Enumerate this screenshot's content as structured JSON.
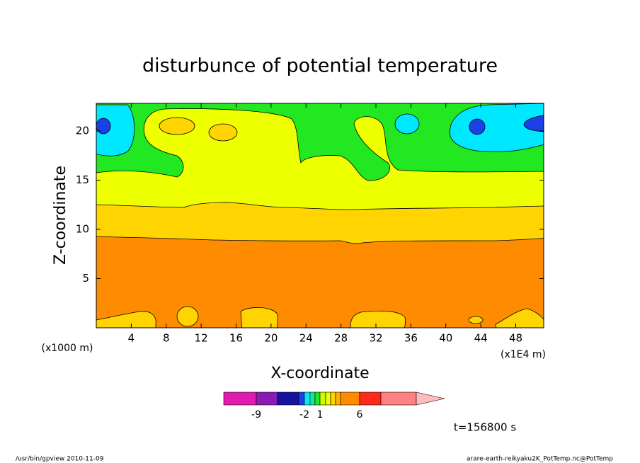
{
  "chart_data": {
    "type": "contour",
    "title": "disturbunce of potential temperature",
    "x_label": "X-coordinate",
    "y_label": "Z-coordinate",
    "x_unit_label": "(x1E4 m)",
    "y_unit_label": "(x1000 m)",
    "annotation": "t=156800 s",
    "xlim": [
      0,
      51.2
    ],
    "xticks": [
      4,
      8,
      12,
      16,
      20,
      24,
      28,
      32,
      36,
      40,
      44,
      48
    ],
    "ylim": [
      0,
      22.8
    ],
    "yticks": [
      5,
      10,
      15,
      20
    ],
    "levels": [
      -12,
      -9,
      -6,
      -3,
      -2,
      -1,
      0,
      1,
      2,
      3,
      4,
      5,
      6,
      9,
      12
    ],
    "colors": [
      "#e01cb0",
      "#8a1cb4",
      "#1414a0",
      "#1a40e8",
      "#00e8ff",
      "#10e8a0",
      "#22e822",
      "#c8ff00",
      "#eeff00",
      "#ffd400",
      "#ffb000",
      "#ff8c00",
      "#ff2a1a",
      "#ff8080"
    ],
    "extend_color": "#ffbcbc",
    "colorbar_ticks": [
      -9,
      -2,
      1,
      6
    ]
  },
  "footer": {
    "left": "/usr/bin/gpview  2010-11-09",
    "right": "arare-earth-reikyaku2K_PotTemp.nc@PotTemp"
  }
}
